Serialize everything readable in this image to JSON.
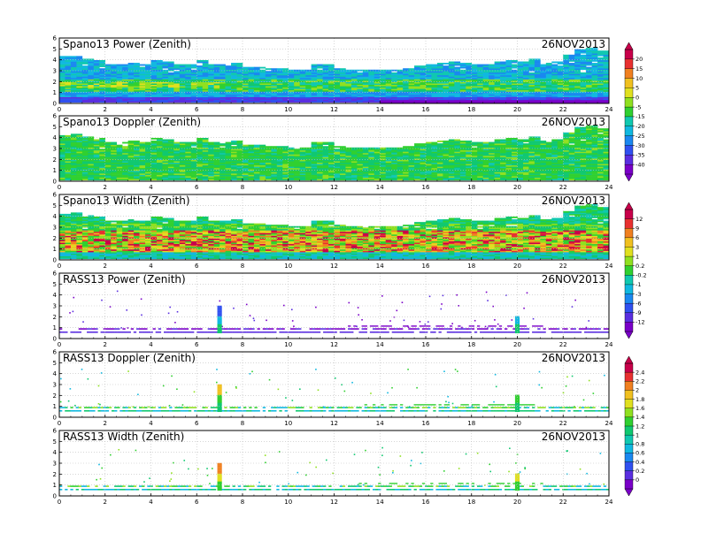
{
  "chart_data": [
    {
      "type": "heatmap",
      "title": "Spano13 Power (Zenith)",
      "date": "26NOV2013",
      "x_ticks": [
        "0",
        "2",
        "4",
        "6",
        "8",
        "10",
        "12",
        "14",
        "16",
        "18",
        "20",
        "22",
        "24"
      ],
      "y_ticks": [
        "0",
        "1",
        "2",
        "3",
        "4",
        "5",
        "6"
      ],
      "xlim": [
        0,
        24
      ],
      "ylim": [
        0,
        6
      ],
      "colorbar": [
        "20",
        "15",
        "10",
        "5",
        "0",
        "-5",
        "-15",
        "-20",
        "-25",
        "-30",
        "-35",
        "-40"
      ],
      "field_pattern": "power",
      "top_profile": [
        4.3,
        4.3,
        4.1,
        3.9,
        3.6,
        3.6,
        3.7,
        3.6,
        3.9,
        3.8,
        3.6,
        3.5,
        3.9,
        3.6,
        3.6,
        3.7,
        3.3,
        3.3,
        3.2,
        3.2,
        3.1,
        3.1,
        3.6,
        3.6,
        3.2,
        3.1,
        3.0,
        3.0,
        3.0,
        3.1,
        3.2,
        3.4,
        3.6,
        3.7,
        3.8,
        3.7,
        3.6,
        3.5,
        3.8,
        3.9,
        3.8,
        4.1,
        3.7,
        3.8,
        4.4,
        4.9,
        5.0,
        4.8
      ]
    },
    {
      "type": "heatmap",
      "title": "Spano13 Doppler (Zenith)",
      "date": "26NOV2013",
      "x_ticks": [
        "0",
        "2",
        "4",
        "6",
        "8",
        "10",
        "12",
        "14",
        "16",
        "18",
        "20",
        "22",
        "24"
      ],
      "y_ticks": [
        "0",
        "1",
        "2",
        "3",
        "4",
        "5",
        "6"
      ],
      "xlim": [
        0,
        24
      ],
      "ylim": [
        0,
        6
      ],
      "field_pattern": "doppler",
      "top_profile": [
        4.2,
        4.3,
        4.1,
        3.9,
        3.6,
        3.6,
        3.7,
        3.6,
        3.9,
        3.8,
        3.6,
        3.5,
        3.9,
        3.6,
        3.6,
        3.7,
        3.3,
        3.3,
        3.2,
        3.2,
        3.1,
        3.1,
        3.6,
        3.6,
        3.2,
        3.1,
        3.0,
        3.0,
        3.0,
        3.1,
        3.2,
        3.4,
        3.6,
        3.7,
        3.8,
        3.7,
        3.6,
        3.5,
        3.8,
        3.9,
        3.8,
        4.1,
        3.7,
        3.8,
        4.4,
        4.9,
        5.0,
        4.8
      ]
    },
    {
      "type": "heatmap",
      "title": "Spano13 Width (Zenith)",
      "date": "26NOV2013",
      "x_ticks": [
        "0",
        "2",
        "4",
        "6",
        "8",
        "10",
        "12",
        "14",
        "16",
        "18",
        "20",
        "22",
        "24"
      ],
      "y_ticks": [
        "0",
        "1",
        "2",
        "3",
        "4",
        "5",
        "6"
      ],
      "xlim": [
        0,
        24
      ],
      "ylim": [
        0,
        6
      ],
      "colorbar": [
        "12",
        "9",
        "6",
        "3",
        "1",
        "0.2",
        "-0.2",
        "-1",
        "-3",
        "-6",
        "-9",
        "-12"
      ],
      "field_pattern": "width",
      "top_profile": [
        4.2,
        4.3,
        4.1,
        3.9,
        3.6,
        3.6,
        3.7,
        3.6,
        3.9,
        3.8,
        3.6,
        3.5,
        3.9,
        3.6,
        3.6,
        3.7,
        3.3,
        3.3,
        3.2,
        3.2,
        3.1,
        3.1,
        3.6,
        3.6,
        3.2,
        3.1,
        3.0,
        3.0,
        3.0,
        3.1,
        3.2,
        3.4,
        3.6,
        3.7,
        3.8,
        3.7,
        3.6,
        3.5,
        3.8,
        3.9,
        3.8,
        4.1,
        3.7,
        3.8,
        4.4,
        4.9,
        5.0,
        4.8
      ]
    },
    {
      "type": "heatmap",
      "title": "RASS13 Power (Zenith)",
      "date": "26NOV2013",
      "x_ticks": [
        "0",
        "2",
        "4",
        "6",
        "8",
        "10",
        "12",
        "14",
        "16",
        "18",
        "20",
        "22",
        "24"
      ],
      "y_ticks": [
        "0",
        "1",
        "2",
        "3",
        "4",
        "5",
        "6"
      ],
      "xlim": [
        0,
        24
      ],
      "ylim": [
        0,
        6
      ],
      "field_pattern": "rass_power"
    },
    {
      "type": "heatmap",
      "title": "RASS13 Doppler (Zenith)",
      "date": "26NOV2013",
      "x_ticks": [
        "0",
        "2",
        "4",
        "6",
        "8",
        "10",
        "12",
        "14",
        "16",
        "18",
        "20",
        "22",
        "24"
      ],
      "y_ticks": [
        "0",
        "1",
        "2",
        "3",
        "4",
        "5",
        "6"
      ],
      "xlim": [
        0,
        24
      ],
      "ylim": [
        0,
        6
      ],
      "colorbar": [
        "2.4",
        "2.2",
        "2",
        "1.8",
        "1.6",
        "1.4",
        "1.2",
        "1",
        "0.8",
        "0.6",
        "0.4",
        "0.2",
        "0"
      ],
      "field_pattern": "rass_doppler"
    },
    {
      "type": "heatmap",
      "title": "RASS13 Width (Zenith)",
      "date": "26NOV2013",
      "x_ticks": [
        "0",
        "2",
        "4",
        "6",
        "8",
        "10",
        "12",
        "14",
        "16",
        "18",
        "20",
        "22",
        "24"
      ],
      "y_ticks": [
        "0",
        "1",
        "2",
        "3",
        "4",
        "5",
        "6"
      ],
      "xlim": [
        0,
        24
      ],
      "ylim": [
        0,
        6
      ],
      "field_pattern": "rass_width"
    }
  ],
  "colors": {
    "rainbow": [
      "#7a00c8",
      "#5a2ee0",
      "#3050f0",
      "#1a88f0",
      "#10b8e0",
      "#10c8b0",
      "#10c870",
      "#30d030",
      "#90e020",
      "#e0e020",
      "#f0c020",
      "#f08020",
      "#e83030",
      "#c8004a"
    ],
    "grid": "#bdbdbd"
  }
}
